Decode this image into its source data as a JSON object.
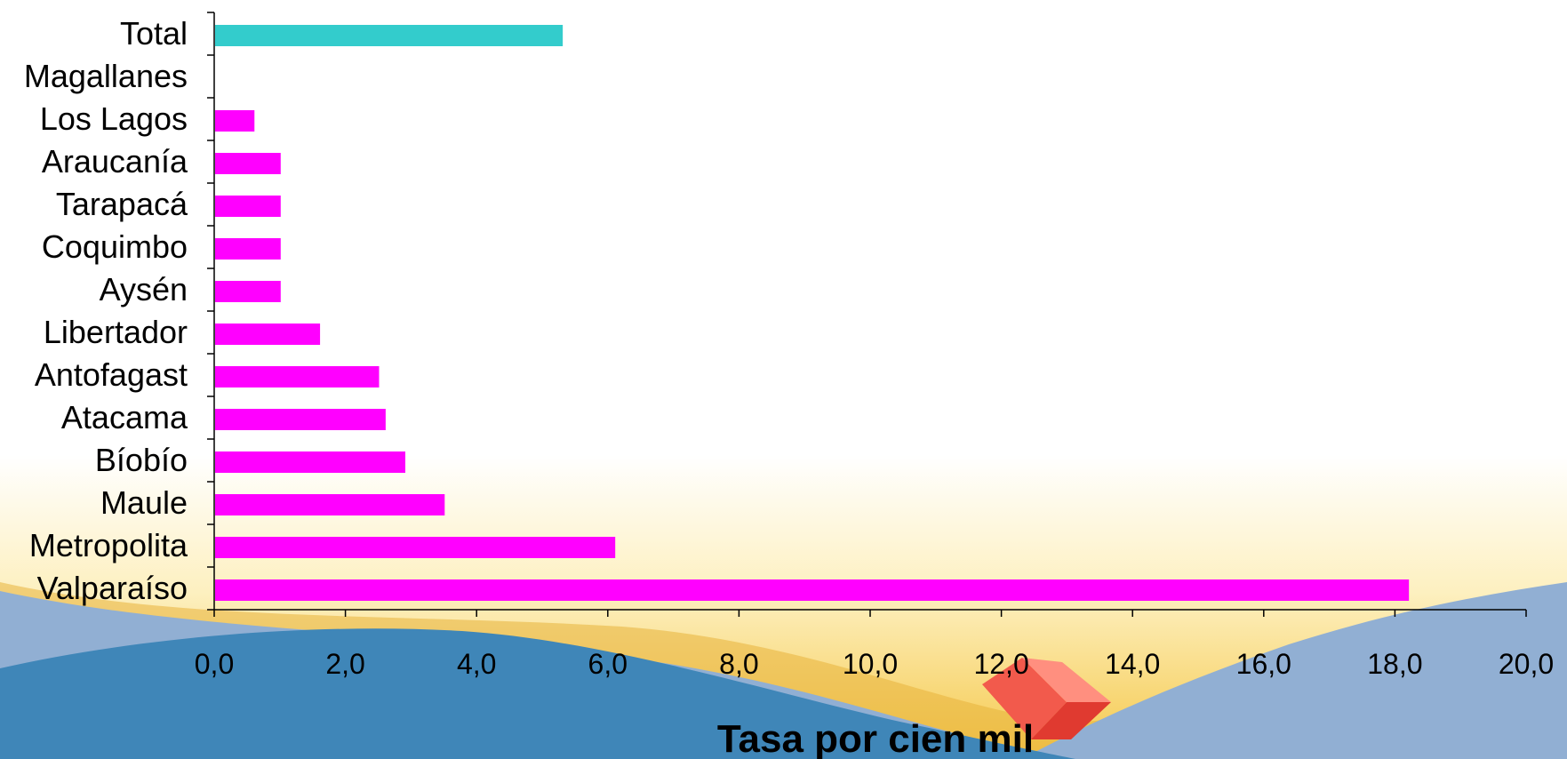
{
  "chart_data": {
    "type": "bar",
    "orientation": "horizontal",
    "title": "",
    "xlabel": "Tasa por cien mil",
    "ylabel": "",
    "xlim": [
      0,
      20
    ],
    "x_ticks": [
      "0,0",
      "2,0",
      "4,0",
      "6,0",
      "8,0",
      "10,0",
      "12,0",
      "14,0",
      "16,0",
      "18,0",
      "20,0"
    ],
    "grid": false,
    "legend": "none",
    "categories": [
      "Total",
      "Magallanes",
      "Los Lagos",
      "Araucanía",
      "Tarapacá",
      "Coquimbo",
      "Aysén",
      "Libertador",
      "Antofagast",
      "Atacama",
      "Bíobío",
      "Maule",
      "Metropolita",
      "Valparaíso"
    ],
    "values": [
      5.3,
      0,
      0.6,
      1.0,
      1.0,
      1.0,
      1.0,
      1.6,
      2.5,
      2.6,
      2.9,
      3.5,
      6.1,
      18.2
    ],
    "colors": {
      "Total": "#33cccc",
      "default": "#ff00ff"
    }
  }
}
